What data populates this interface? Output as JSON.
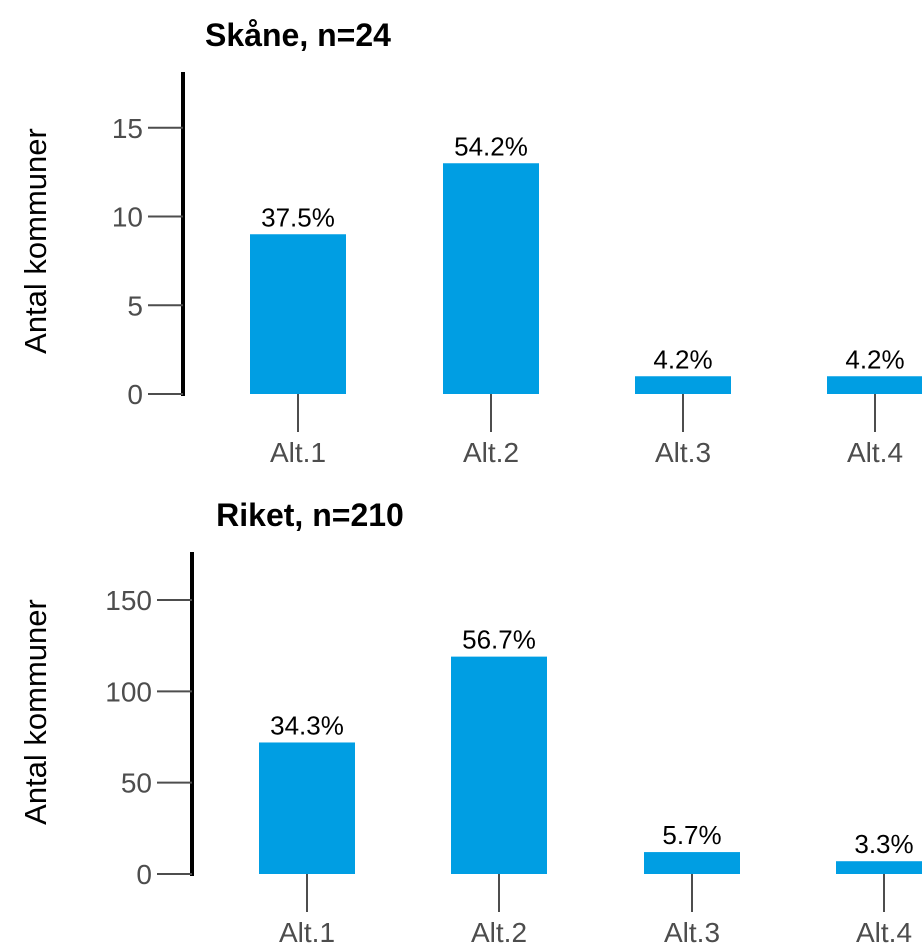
{
  "colors": {
    "bar": "#009ee3",
    "axis": "#000000",
    "tick": "#4d4d4d",
    "text": "#000000"
  },
  "chart_data": [
    {
      "type": "bar",
      "title": "Skåne, n=24",
      "ylabel": "Antal kommuner",
      "xlabel": "",
      "categories": [
        "Alt.1",
        "Alt.2",
        "Alt.3",
        "Alt.4"
      ],
      "values": [
        9,
        13,
        1,
        1
      ],
      "data_labels": [
        "37.5%",
        "54.2%",
        "4.2%",
        "4.2%"
      ],
      "yticks": [
        0,
        5,
        10,
        15
      ],
      "ylim": [
        0,
        17.5
      ],
      "grid": false,
      "legend": "none"
    },
    {
      "type": "bar",
      "title": "Riket, n=210",
      "ylabel": "Antal kommuner",
      "xlabel": "",
      "categories": [
        "Alt.1",
        "Alt.2",
        "Alt.3",
        "Alt.4"
      ],
      "values": [
        72,
        119,
        12,
        7
      ],
      "data_labels": [
        "34.3%",
        "56.7%",
        "5.7%",
        "3.3%"
      ],
      "yticks": [
        0,
        50,
        100,
        150
      ],
      "ylim": [
        0,
        175
      ],
      "grid": false,
      "legend": "none"
    }
  ]
}
